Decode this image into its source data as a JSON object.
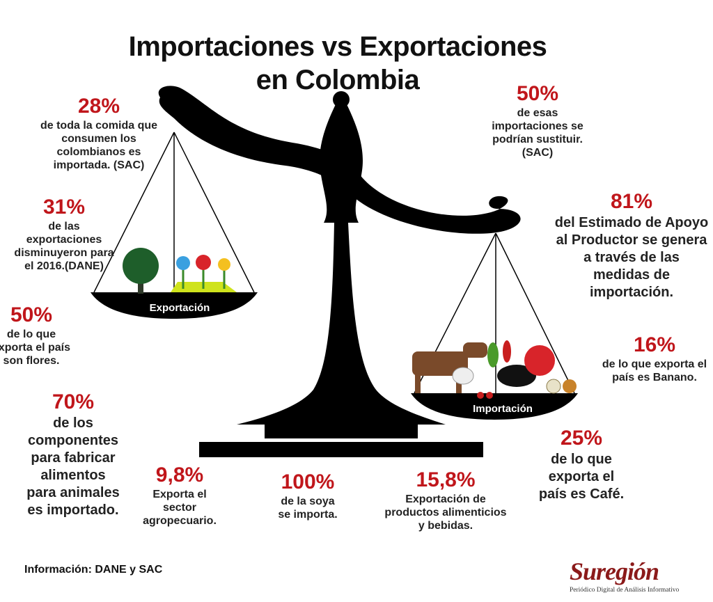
{
  "header": {
    "title_lines": [
      "Importaciones vs Exportaciones",
      "en Colombia"
    ]
  },
  "scale": {
    "left_pan_label": "Exportación",
    "right_pan_label": "Importación"
  },
  "stats": [
    {
      "value": "28%",
      "lines": [
        "de toda la comida que",
        "consumen los",
        "colombianos es",
        "importada. (SAC)"
      ]
    },
    {
      "value": "31%",
      "lines": [
        "de las",
        "exportaciones",
        "disminuyeron para",
        "el 2016.(DANE)"
      ]
    },
    {
      "value": "50%",
      "lines": [
        "de lo que",
        "exporta el país",
        "son flores."
      ]
    },
    {
      "value": "70%",
      "lines": [
        "de los",
        "componentes",
        "para fabricar",
        "alimentos",
        "para animales",
        "es importado."
      ]
    },
    {
      "value": "9,8%",
      "lines": [
        "Exporta el",
        "sector",
        "agropecuario."
      ]
    },
    {
      "value": "100%",
      "lines": [
        "de la soya",
        "se importa."
      ]
    },
    {
      "value": "15,8%",
      "lines": [
        "Exportación de",
        "productos alimenticios",
        "y bebidas."
      ]
    },
    {
      "value": "25%",
      "lines": [
        "de lo que",
        "exporta el",
        "país es Café."
      ]
    },
    {
      "value": "16%",
      "lines": [
        "de lo que exporta el",
        "país es Banano."
      ]
    },
    {
      "value": "81%",
      "lines": [
        "del Estimado de Apoyo",
        "al Productor se genera",
        "a través de las",
        "medidas de",
        "importación."
      ]
    },
    {
      "value": "50%",
      "lines": [
        "de esas",
        "importaciones se",
        "podrían sustituir.",
        "(SAC)"
      ]
    }
  ],
  "footer": {
    "source": "Información: DANE y SAC",
    "logo": "Suregión",
    "logo_tagline": "Periódico Digital de Análisis Informativo"
  }
}
